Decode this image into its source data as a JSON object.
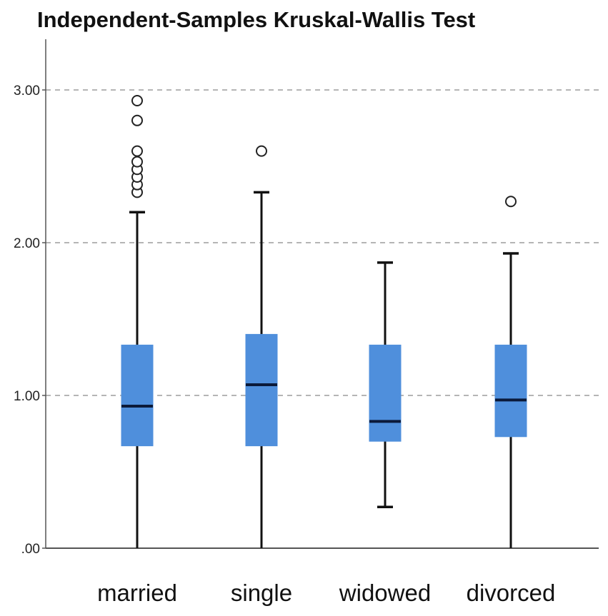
{
  "chart_data": {
    "type": "boxplot",
    "title": "Independent-Samples Kruskal-Wallis Test",
    "xlabel": "",
    "ylabel": "",
    "ylim": [
      0,
      3.3
    ],
    "yticks": [
      0,
      1,
      2,
      3
    ],
    "ytick_labels": [
      ".00",
      "1.00",
      "2.00",
      "3.00"
    ],
    "grid": "horizontal-dashed",
    "box_color": "#4f8fdc",
    "categories": [
      "married",
      "single",
      "widowed",
      "divorced"
    ],
    "boxes": [
      {
        "category": "married",
        "min": 0.0,
        "q1": 0.67,
        "median": 0.93,
        "q3": 1.33,
        "max": 2.2,
        "outliers": [
          2.33,
          2.38,
          2.43,
          2.48,
          2.53,
          2.6,
          2.8,
          2.93
        ]
      },
      {
        "category": "single",
        "min": 0.0,
        "q1": 0.67,
        "median": 1.07,
        "q3": 1.4,
        "max": 2.33,
        "outliers": [
          2.6
        ]
      },
      {
        "category": "widowed",
        "min": 0.27,
        "q1": 0.7,
        "median": 0.83,
        "q3": 1.33,
        "max": 1.87,
        "outliers": []
      },
      {
        "category": "divorced",
        "min": 0.0,
        "q1": 0.73,
        "median": 0.97,
        "q3": 1.33,
        "max": 1.93,
        "outliers": [
          2.27
        ]
      }
    ]
  }
}
